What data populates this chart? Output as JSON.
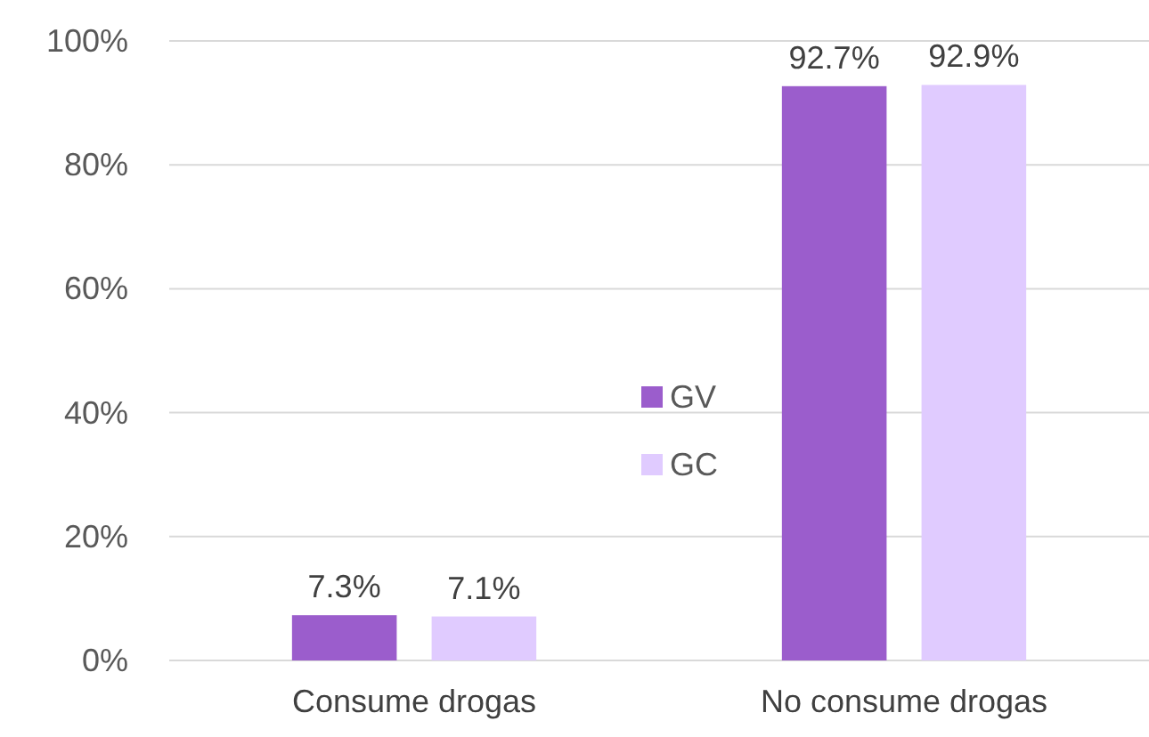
{
  "chart_data": {
    "type": "bar",
    "categories": [
      "Consume drogas",
      "No consume drogas"
    ],
    "series": [
      {
        "name": "GV",
        "color": "#9b5dcc",
        "values": [
          7.3,
          92.7
        ],
        "value_labels": [
          "7.3%",
          "92.7%"
        ]
      },
      {
        "name": "GC",
        "color": "#e0cbff",
        "values": [
          7.1,
          92.9
        ],
        "value_labels": [
          "7.1%",
          "92.9%"
        ]
      }
    ],
    "ylim": [
      0,
      100
    ],
    "yticks": [
      {
        "value": 0,
        "label": "0%"
      },
      {
        "value": 20,
        "label": "20%"
      },
      {
        "value": 40,
        "label": "40%"
      },
      {
        "value": 60,
        "label": "60%"
      },
      {
        "value": 80,
        "label": "80%"
      },
      {
        "value": 100,
        "label": "100%"
      }
    ],
    "grid": "y",
    "legend": "center"
  }
}
